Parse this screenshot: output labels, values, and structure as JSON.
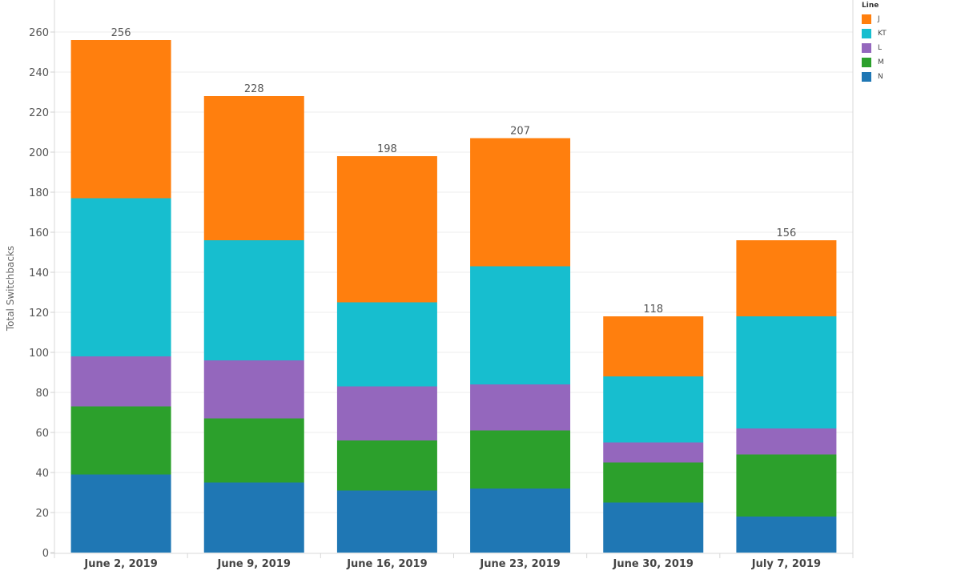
{
  "chart_data": {
    "type": "bar",
    "stacked": true,
    "title": "",
    "xlabel": "",
    "ylabel": "Total Switchbacks",
    "ylim": [
      0,
      270
    ],
    "yticks": [
      0,
      20,
      40,
      60,
      80,
      100,
      120,
      140,
      160,
      180,
      200,
      220,
      240,
      260
    ],
    "grid": true,
    "legend_position": "top-right",
    "legend_title": "Line",
    "categories": [
      "June 2, 2019",
      "June 9, 2019",
      "June 16, 2019",
      "June 23, 2019",
      "June 30, 2019",
      "July 7, 2019"
    ],
    "totals": [
      256,
      228,
      198,
      207,
      118,
      156
    ],
    "series": [
      {
        "name": "N",
        "color": "#1f77b4",
        "values": [
          39,
          35,
          31,
          32,
          25,
          18
        ]
      },
      {
        "name": "M",
        "color": "#2ca02c",
        "values": [
          34,
          32,
          25,
          29,
          20,
          31
        ]
      },
      {
        "name": "L",
        "color": "#9467bd",
        "values": [
          25,
          29,
          27,
          23,
          10,
          13
        ]
      },
      {
        "name": "KT",
        "color": "#17becf",
        "values": [
          79,
          60,
          42,
          59,
          33,
          56
        ]
      },
      {
        "name": "J",
        "color": "#ff7f0e",
        "values": [
          79,
          72,
          73,
          64,
          30,
          38
        ]
      }
    ],
    "legend_order": [
      "J",
      "KT",
      "L",
      "M",
      "N"
    ]
  }
}
